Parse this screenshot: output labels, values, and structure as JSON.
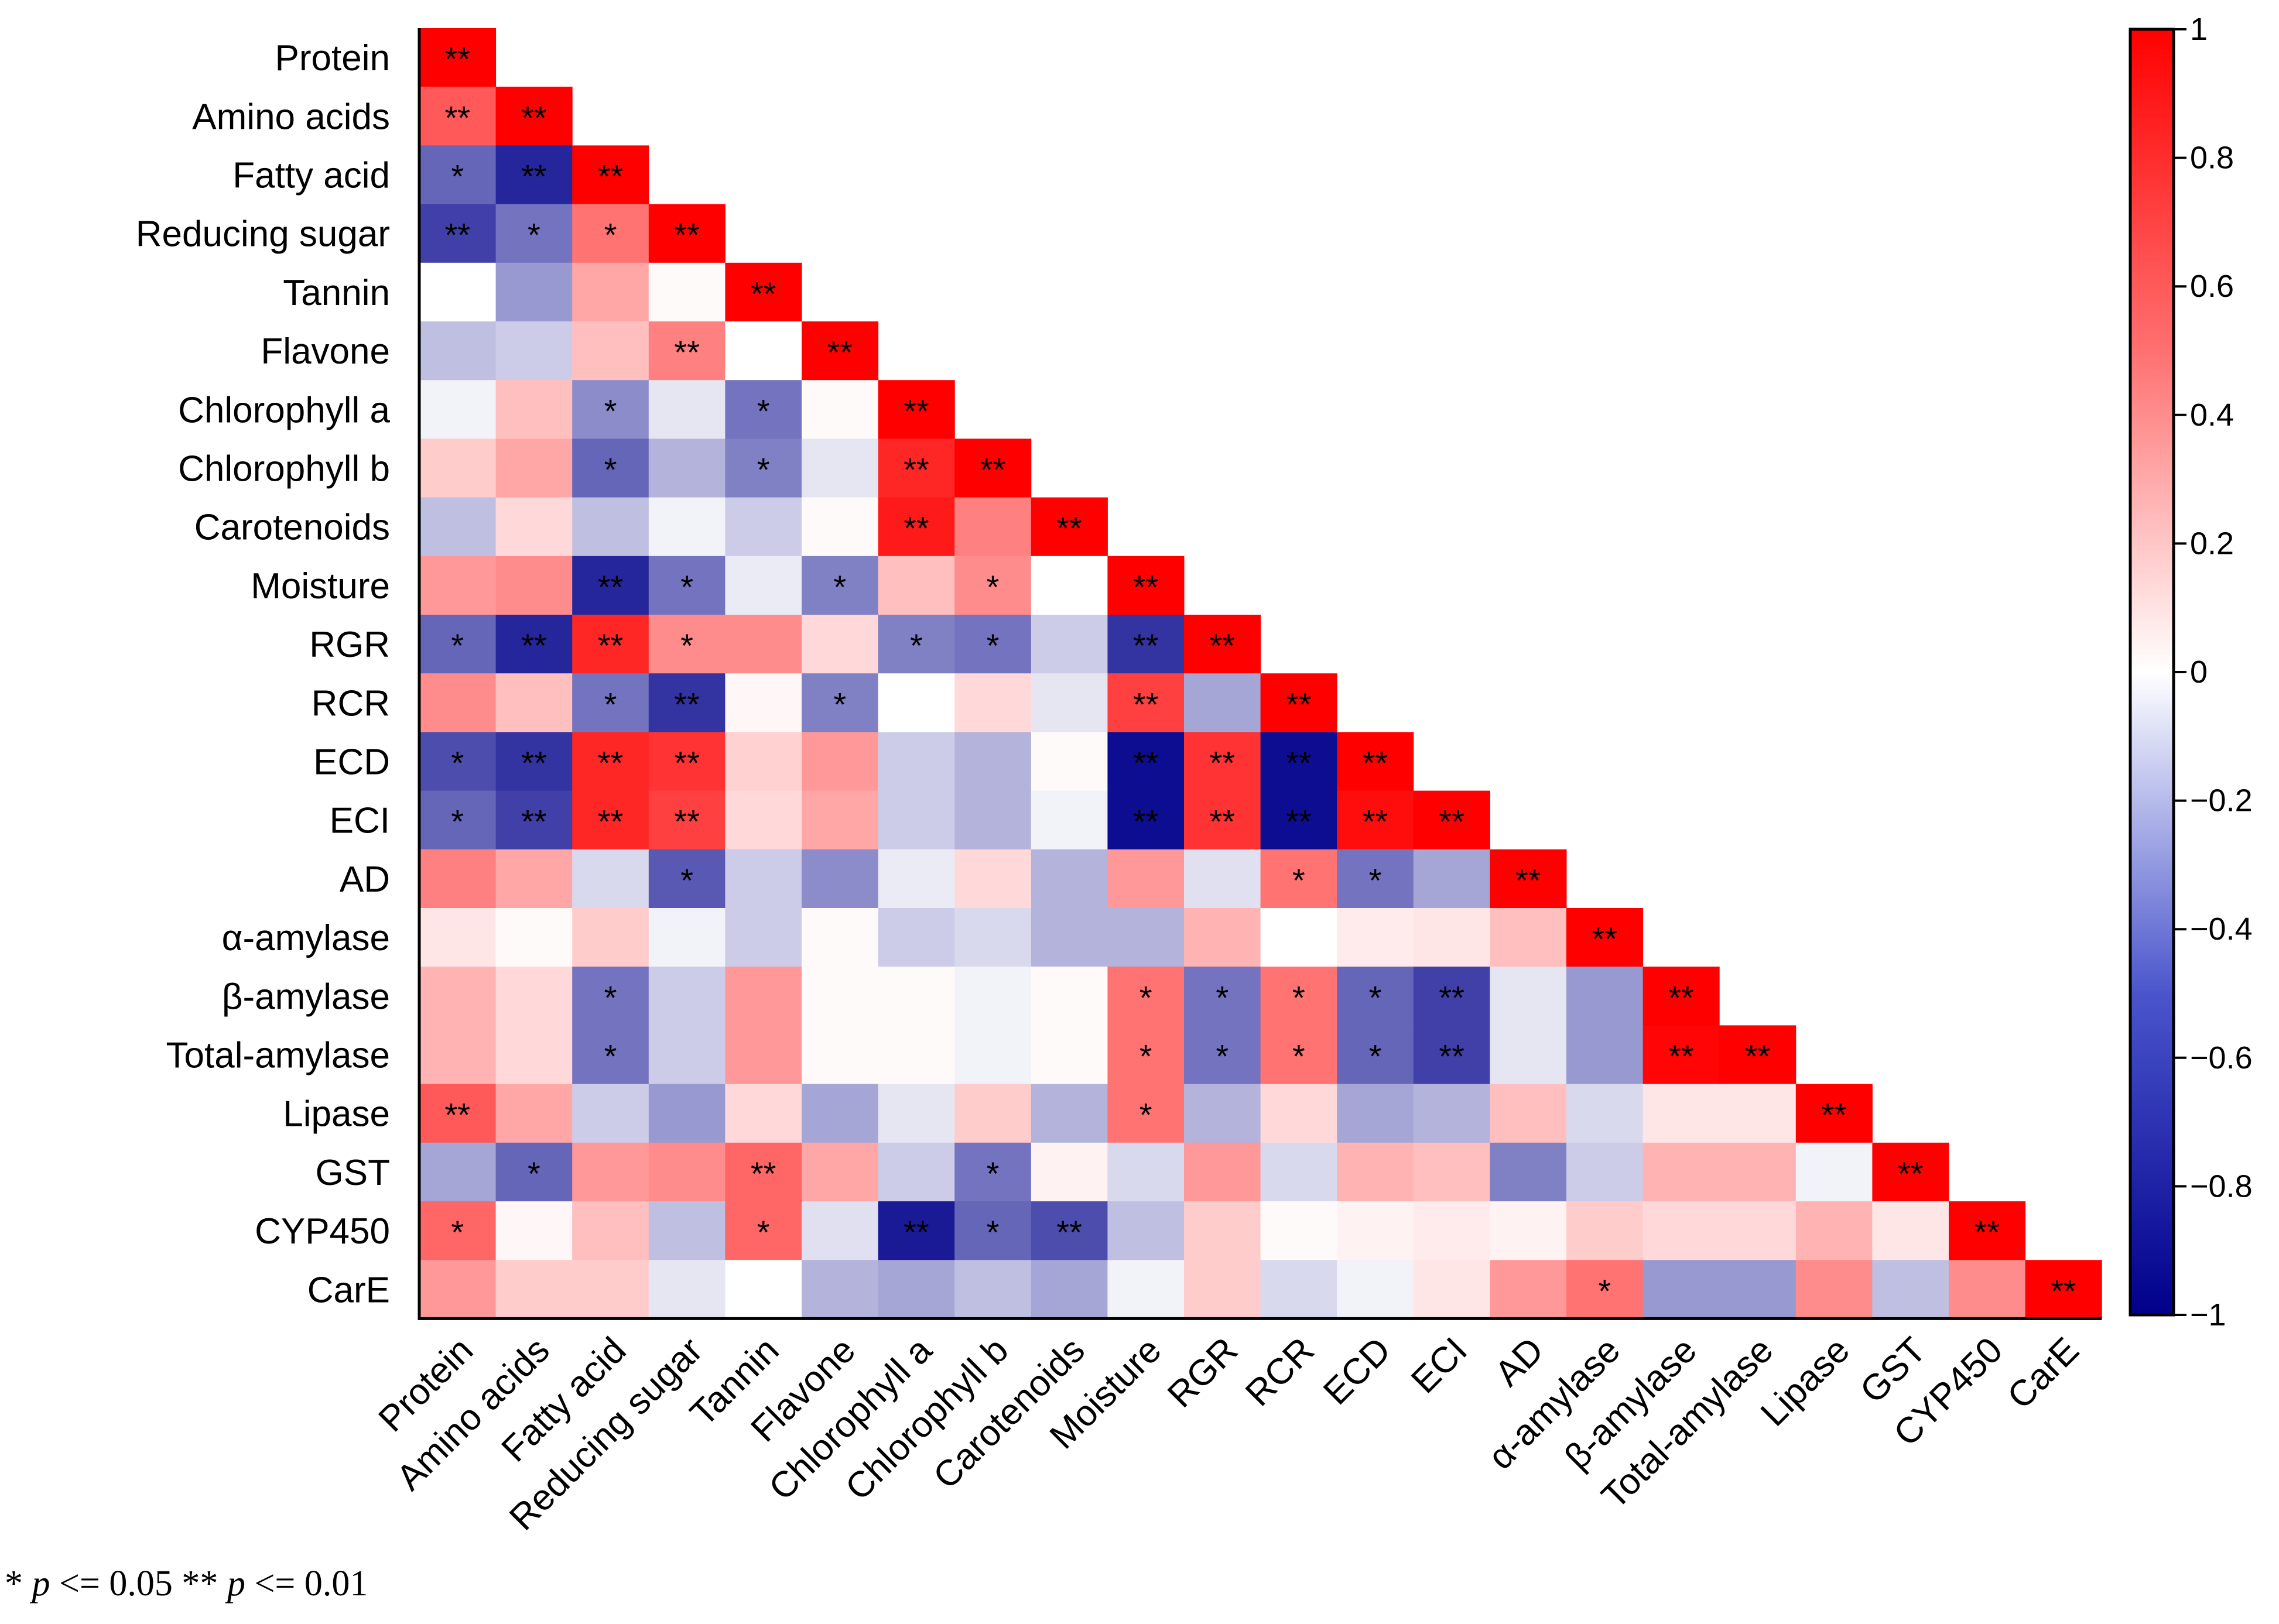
{
  "chart_data": {
    "type": "heatmap",
    "title": "",
    "variables": [
      "Protein",
      "Amino acids",
      "Fatty acid",
      "Reducing sugar",
      "Tannin",
      "Flavone",
      "Chlorophyll a",
      "Chlorophyll b",
      "Carotenoids",
      "Moisture",
      "RGR",
      "RCR",
      "ECD",
      "ECI",
      "AD",
      "α-amylase",
      "β-amylase",
      "Total-amylase",
      "Lipase",
      "GST",
      "CYP450",
      "CarE"
    ],
    "lower_triangle_values": [
      [
        1
      ],
      [
        0.65,
        1
      ],
      [
        -0.6,
        -0.85,
        1
      ],
      [
        -0.75,
        -0.55,
        0.55,
        1
      ],
      [
        0,
        -0.4,
        0.35,
        0.02,
        1
      ],
      [
        -0.25,
        -0.2,
        0.25,
        0.5,
        0,
        1
      ],
      [
        -0.05,
        0.25,
        -0.45,
        -0.1,
        -0.55,
        0.02,
        1
      ],
      [
        0.2,
        0.35,
        -0.6,
        -0.3,
        -0.5,
        -0.1,
        0.85,
        1
      ],
      [
        -0.25,
        0.15,
        -0.25,
        -0.05,
        -0.2,
        0.02,
        0.9,
        0.5,
        1
      ],
      [
        0.4,
        0.45,
        -0.85,
        -0.55,
        -0.08,
        -0.5,
        0.25,
        0.45,
        0,
        1
      ],
      [
        -0.6,
        -0.85,
        0.85,
        0.45,
        0.45,
        0.15,
        -0.5,
        -0.55,
        -0.2,
        -0.8,
        1
      ],
      [
        0.45,
        0.25,
        -0.55,
        -0.8,
        0.03,
        -0.5,
        0,
        0.15,
        -0.1,
        0.75,
        -0.35,
        1
      ],
      [
        -0.7,
        -0.8,
        0.85,
        0.8,
        0.18,
        0.4,
        -0.2,
        -0.3,
        0.02,
        -0.95,
        0.8,
        -0.95,
        1
      ],
      [
        -0.6,
        -0.75,
        0.85,
        0.75,
        0.15,
        0.35,
        -0.2,
        -0.3,
        -0.05,
        -0.95,
        0.8,
        -0.95,
        0.95,
        1
      ],
      [
        0.5,
        0.35,
        -0.15,
        -0.65,
        -0.2,
        -0.45,
        -0.08,
        0.15,
        -0.3,
        0.4,
        -0.12,
        0.55,
        -0.55,
        -0.35,
        1
      ],
      [
        0.1,
        0.02,
        0.2,
        -0.05,
        -0.2,
        0.02,
        -0.2,
        -0.15,
        -0.3,
        -0.3,
        0.3,
        0,
        0.08,
        0.1,
        0.25,
        1
      ],
      [
        0.3,
        0.15,
        -0.55,
        -0.2,
        0.4,
        0.02,
        0.02,
        -0.05,
        0.02,
        0.55,
        -0.55,
        0.55,
        -0.6,
        -0.75,
        -0.1,
        -0.4,
        1
      ],
      [
        0.3,
        0.15,
        -0.55,
        -0.2,
        0.4,
        0.02,
        0.02,
        -0.05,
        0.02,
        0.55,
        -0.55,
        0.55,
        -0.6,
        -0.75,
        -0.1,
        -0.4,
        0.98,
        1
      ],
      [
        0.65,
        0.35,
        -0.2,
        -0.4,
        0.15,
        -0.35,
        -0.1,
        0.2,
        -0.3,
        0.55,
        -0.3,
        0.15,
        -0.35,
        -0.3,
        0.25,
        -0.15,
        0.1,
        0.1,
        1
      ],
      [
        -0.35,
        -0.6,
        0.4,
        0.45,
        0.6,
        0.35,
        -0.2,
        -0.55,
        0.05,
        -0.15,
        0.4,
        -0.15,
        0.3,
        0.25,
        -0.5,
        -0.2,
        0.3,
        0.3,
        -0.05,
        1
      ],
      [
        0.6,
        0.03,
        0.25,
        -0.25,
        0.6,
        -0.12,
        -0.9,
        -0.6,
        -0.7,
        -0.25,
        0.2,
        0.02,
        0.05,
        0.08,
        0.05,
        0.2,
        0.15,
        0.15,
        0.3,
        0.1,
        1
      ],
      [
        0.4,
        0.2,
        0.2,
        -0.1,
        0,
        -0.3,
        -0.35,
        -0.25,
        -0.35,
        -0.05,
        0.2,
        -0.15,
        -0.05,
        0.1,
        0.4,
        0.55,
        -0.4,
        -0.4,
        0.45,
        -0.25,
        0.45,
        1
      ]
    ],
    "significance": [
      [
        "**"
      ],
      [
        "**",
        "**"
      ],
      [
        "*",
        "**",
        "**"
      ],
      [
        "**",
        "*",
        "*",
        "**"
      ],
      [
        "",
        "",
        "",
        "",
        "**"
      ],
      [
        "",
        "",
        "",
        "**",
        "",
        "**"
      ],
      [
        "",
        "",
        "*",
        "",
        "*",
        "",
        "**"
      ],
      [
        "",
        "",
        "*",
        "",
        "*",
        "",
        "**",
        "**"
      ],
      [
        "",
        "",
        "",
        "",
        "",
        "",
        "**",
        "",
        "**"
      ],
      [
        "",
        "",
        "**",
        "*",
        "",
        "*",
        "",
        "*",
        "",
        "**"
      ],
      [
        "*",
        "**",
        "**",
        "*",
        "",
        "",
        "*",
        "*",
        "",
        "**",
        "**"
      ],
      [
        "",
        "",
        "*",
        "**",
        "",
        "*",
        "",
        "",
        "",
        "**",
        "",
        "**"
      ],
      [
        "*",
        "**",
        "**",
        "**",
        "",
        "",
        "",
        "",
        "",
        "**",
        "**",
        "**",
        "**"
      ],
      [
        "*",
        "**",
        "**",
        "**",
        "",
        "",
        "",
        "",
        "",
        "**",
        "**",
        "**",
        "**",
        "**"
      ],
      [
        "",
        "",
        "",
        "*",
        "",
        "",
        "",
        "",
        "",
        "",
        "",
        "*",
        "*",
        "",
        "**"
      ],
      [
        "",
        "",
        "",
        "",
        "",
        "",
        "",
        "",
        "",
        "",
        "",
        "",
        "",
        "",
        "",
        "**"
      ],
      [
        "",
        "",
        "*",
        "",
        "",
        "",
        "",
        "",
        "",
        "*",
        "*",
        "*",
        "*",
        "**",
        "",
        "",
        "**"
      ],
      [
        "",
        "",
        "*",
        "",
        "",
        "",
        "",
        "",
        "",
        "*",
        "*",
        "*",
        "*",
        "**",
        "",
        "",
        "**",
        "**"
      ],
      [
        "**",
        "",
        "",
        "",
        "",
        "",
        "",
        "",
        "",
        "*",
        "",
        "",
        "",
        "",
        "",
        "",
        "",
        "",
        "**"
      ],
      [
        "",
        "*",
        "",
        "",
        "**",
        "",
        "",
        "*",
        "",
        "",
        "",
        "",
        "",
        "",
        "",
        "",
        "",
        "",
        "",
        "**"
      ],
      [
        "*",
        "",
        "",
        "",
        "*",
        "",
        "**",
        "*",
        "**",
        "",
        "",
        "",
        "",
        "",
        "",
        "",
        "",
        "",
        "",
        "",
        "**"
      ],
      [
        "",
        "",
        "",
        "",
        "",
        "",
        "",
        "",
        "",
        "",
        "",
        "",
        "",
        "",
        "",
        "*",
        "",
        "",
        "",
        "",
        "",
        "**"
      ]
    ],
    "colorbar": {
      "range": [
        -1,
        1
      ],
      "ticks": [
        1,
        0.8,
        0.6,
        0.4,
        0.2,
        0,
        -0.2,
        -0.4,
        -0.6,
        -0.8,
        -1
      ],
      "tick_labels": [
        "1",
        "0.8",
        "0.6",
        "0.4",
        "0.2",
        "0",
        "−0.2",
        "−0.4",
        "−0.6",
        "−0.8",
        "−1"
      ],
      "color_low": "#00008b",
      "color_mid": "#ffffff",
      "color_high": "#ff0000"
    }
  },
  "footnote": {
    "star1": "* ",
    "p1": "p",
    "cond1": " <= 0.05   ** ",
    "p2": "p",
    "cond2": " <= 0.01"
  }
}
